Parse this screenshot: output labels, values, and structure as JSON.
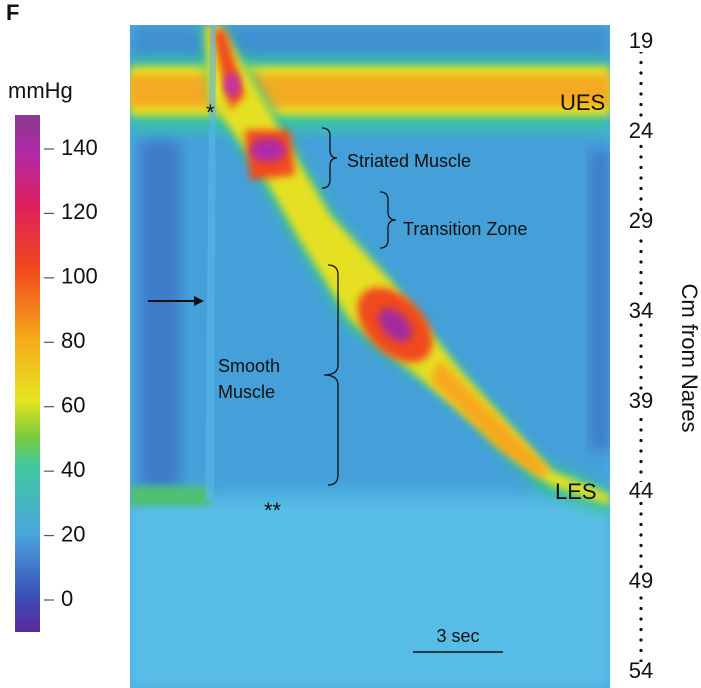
{
  "panel_label": "F",
  "colorbar": {
    "unit": "mmHg",
    "ticks": [
      0,
      20,
      40,
      60,
      80,
      100,
      120,
      140
    ]
  },
  "depth_axis": {
    "label": "Cm from Nares",
    "ticks": [
      19,
      24,
      29,
      34,
      39,
      44,
      49,
      54
    ]
  },
  "annotations": {
    "ues": "UES",
    "striated": "Striated Muscle",
    "transition": "Transition Zone",
    "smooth_line1": "Smooth",
    "smooth_line2": "Muscle",
    "les": "LES",
    "star": "*",
    "double_star": "**",
    "scale": "3 sec"
  }
}
